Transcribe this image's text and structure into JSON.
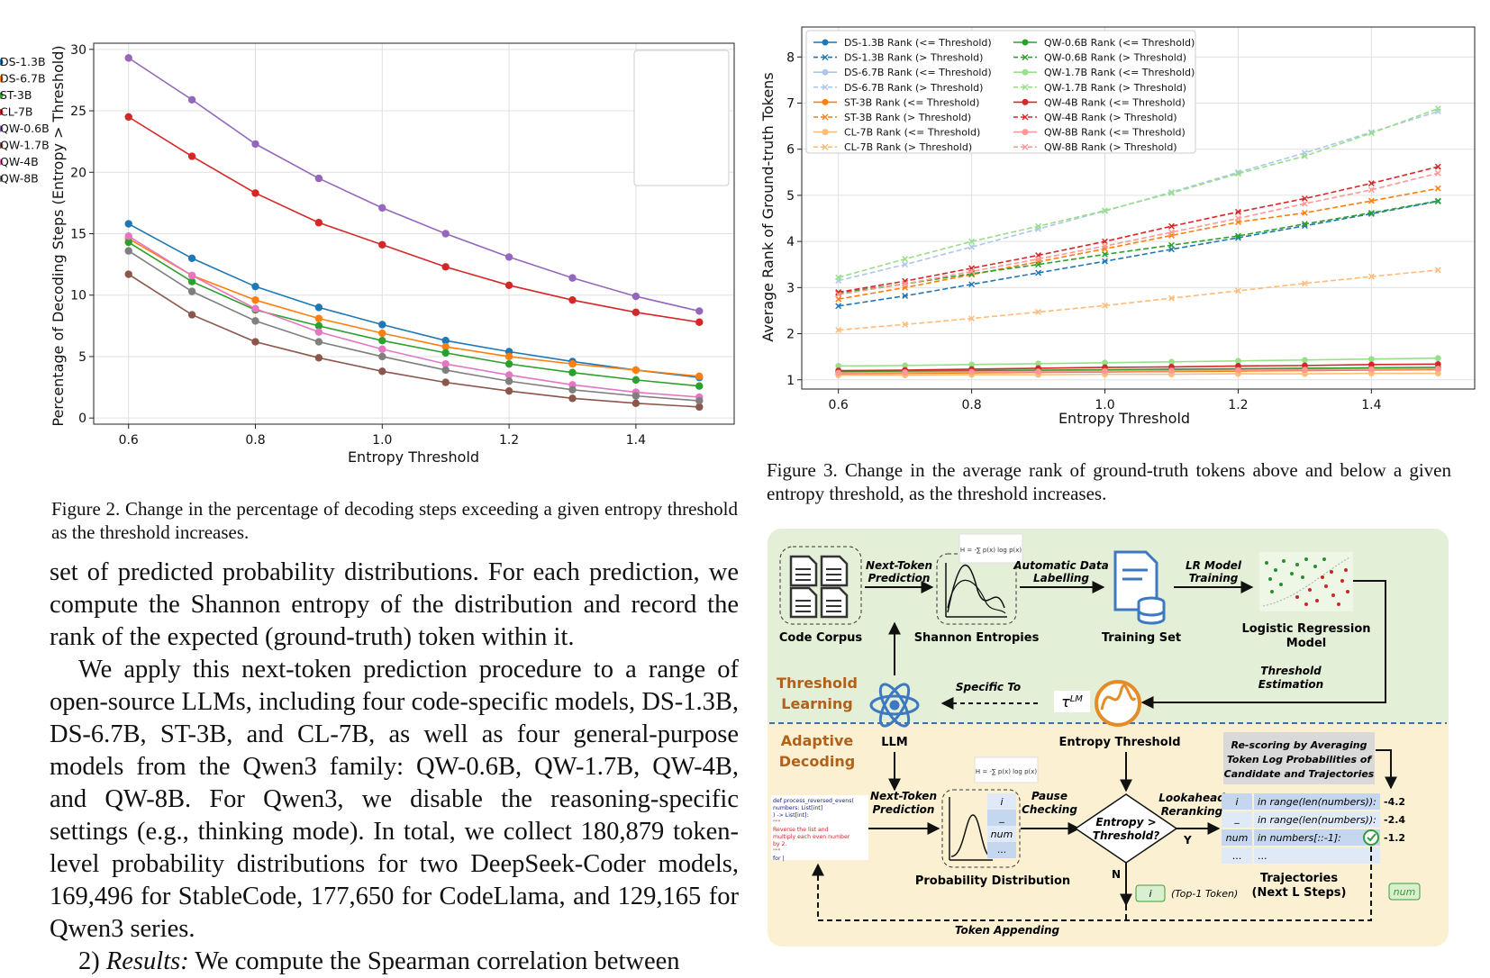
{
  "fig2": {
    "caption": "Figure 2.  Change in the percentage of decoding steps exceeding a given entropy threshold as the threshold increases.",
    "chart_data": {
      "type": "line",
      "xlabel": "Entropy Threshold",
      "ylabel": "Percentage of Decoding Steps (Entropy > Threshold)",
      "xlim": [
        0.545,
        1.555
      ],
      "ylim": [
        -0.5,
        30.5
      ],
      "xticks": [
        "0.6",
        "0.8",
        "1.0",
        "1.2",
        "1.4"
      ],
      "yticks": [
        "0",
        "5",
        "10",
        "15",
        "20",
        "25",
        "30"
      ],
      "grid": true,
      "legend": "top-right",
      "x": [
        0.6,
        0.7,
        0.8,
        0.9,
        1.0,
        1.1,
        1.2,
        1.3,
        1.4,
        1.5
      ],
      "series": [
        {
          "name": "DS-1.3B",
          "color": "#1f77b4",
          "values": [
            15.8,
            13.0,
            10.7,
            9.0,
            7.6,
            6.3,
            5.4,
            4.6,
            3.9,
            3.3
          ]
        },
        {
          "name": "DS-6.7B",
          "color": "#ff7f0e",
          "values": [
            14.6,
            11.6,
            9.6,
            8.1,
            6.9,
            5.8,
            5.0,
            4.4,
            3.9,
            3.4
          ]
        },
        {
          "name": "ST-3B",
          "color": "#2ca02c",
          "values": [
            14.3,
            11.1,
            8.8,
            7.5,
            6.3,
            5.3,
            4.4,
            3.7,
            3.1,
            2.6
          ]
        },
        {
          "name": "CL-7B",
          "color": "#d62728",
          "values": [
            24.5,
            21.3,
            18.3,
            15.9,
            14.1,
            12.3,
            10.8,
            9.6,
            8.6,
            7.8
          ]
        },
        {
          "name": "QW-0.6B",
          "color": "#9467bd",
          "values": [
            29.3,
            25.9,
            22.3,
            19.5,
            17.1,
            15.0,
            13.1,
            11.4,
            9.9,
            8.7
          ]
        },
        {
          "name": "QW-1.7B",
          "color": "#8c564b",
          "values": [
            11.7,
            8.4,
            6.2,
            4.9,
            3.8,
            2.9,
            2.2,
            1.6,
            1.2,
            0.9
          ]
        },
        {
          "name": "QW-4B",
          "color": "#e377c2",
          "values": [
            14.8,
            11.6,
            8.9,
            7.0,
            5.6,
            4.4,
            3.5,
            2.7,
            2.1,
            1.7
          ]
        },
        {
          "name": "QW-8B",
          "color": "#7f7f7f",
          "values": [
            13.6,
            10.3,
            7.9,
            6.2,
            5.0,
            3.9,
            3.0,
            2.3,
            1.8,
            1.4
          ]
        }
      ]
    }
  },
  "fig3": {
    "caption": "Figure 3.  Change in the average rank of ground-truth tokens above and below a given entropy threshold, as the threshold increases.",
    "chart_data": {
      "type": "line",
      "xlabel": "Entropy Threshold",
      "ylabel": "Average Rank of Ground-truth Tokens",
      "xlim": [
        0.545,
        1.555
      ],
      "ylim": [
        0.8,
        8.65
      ],
      "xticks": [
        "0.6",
        "0.8",
        "1.0",
        "1.2",
        "1.4"
      ],
      "yticks": [
        "1",
        "2",
        "3",
        "4",
        "5",
        "6",
        "7",
        "8"
      ],
      "grid": true,
      "legend": "top-left",
      "x": [
        0.6,
        0.7,
        0.8,
        0.9,
        1.0,
        1.1,
        1.2,
        1.3,
        1.4,
        1.5
      ],
      "series": [
        {
          "name": "DS-1.3B Rank (<= Threshold)",
          "color": "#1f77b4",
          "dash": false,
          "values": [
            1.17,
            1.18,
            1.19,
            1.2,
            1.21,
            1.22,
            1.23,
            1.24,
            1.25,
            1.26
          ]
        },
        {
          "name": "DS-1.3B Rank (> Threshold)",
          "color": "#1f77b4",
          "dash": true,
          "values": [
            2.6,
            2.82,
            3.07,
            3.32,
            3.57,
            3.83,
            4.08,
            4.34,
            4.6,
            4.87
          ]
        },
        {
          "name": "DS-6.7B Rank (<= Threshold)",
          "color": "#aec7e8",
          "dash": false,
          "values": [
            1.14,
            1.15,
            1.16,
            1.17,
            1.18,
            1.19,
            1.2,
            1.21,
            1.22,
            1.23
          ]
        },
        {
          "name": "DS-6.7B Rank (> Threshold)",
          "color": "#aec7e8",
          "dash": true,
          "values": [
            3.15,
            3.5,
            3.88,
            4.27,
            4.66,
            5.07,
            5.5,
            5.92,
            6.37,
            6.82
          ]
        },
        {
          "name": "ST-3B Rank (<= Threshold)",
          "color": "#ff7f0e",
          "dash": false,
          "values": [
            1.13,
            1.14,
            1.15,
            1.16,
            1.17,
            1.18,
            1.19,
            1.2,
            1.21,
            1.22
          ]
        },
        {
          "name": "ST-3B Rank (> Threshold)",
          "color": "#ff7f0e",
          "dash": true,
          "values": [
            2.75,
            3.0,
            3.28,
            3.56,
            3.84,
            4.13,
            4.42,
            4.62,
            4.88,
            5.15
          ]
        },
        {
          "name": "CL-7B Rank (<= Threshold)",
          "color": "#ffbb78",
          "dash": false,
          "values": [
            1.1,
            1.1,
            1.11,
            1.11,
            1.12,
            1.12,
            1.13,
            1.13,
            1.14,
            1.14
          ]
        },
        {
          "name": "CL-7B Rank (> Threshold)",
          "color": "#ffbb78",
          "dash": true,
          "values": [
            2.08,
            2.2,
            2.33,
            2.47,
            2.61,
            2.77,
            2.93,
            3.09,
            3.24,
            3.38
          ]
        },
        {
          "name": "QW-0.6B Rank (<= Threshold)",
          "color": "#2ca02c",
          "dash": false,
          "values": [
            1.18,
            1.19,
            1.2,
            1.21,
            1.22,
            1.23,
            1.24,
            1.25,
            1.26,
            1.27
          ]
        },
        {
          "name": "QW-0.6B Rank (> Threshold)",
          "color": "#2ca02c",
          "dash": true,
          "values": [
            2.88,
            3.08,
            3.3,
            3.5,
            3.72,
            3.92,
            4.12,
            4.38,
            4.62,
            4.88
          ]
        },
        {
          "name": "QW-1.7B Rank (<= Threshold)",
          "color": "#98df8a",
          "dash": false,
          "values": [
            1.3,
            1.31,
            1.33,
            1.35,
            1.37,
            1.39,
            1.41,
            1.43,
            1.45,
            1.47
          ]
        },
        {
          "name": "QW-1.7B Rank (> Threshold)",
          "color": "#98df8a",
          "dash": true,
          "values": [
            3.22,
            3.62,
            4.0,
            4.33,
            4.67,
            5.05,
            5.47,
            5.85,
            6.35,
            6.88
          ]
        },
        {
          "name": "QW-4B Rank (<= Threshold)",
          "color": "#d62728",
          "dash": false,
          "values": [
            1.2,
            1.21,
            1.23,
            1.25,
            1.27,
            1.28,
            1.3,
            1.31,
            1.33,
            1.34
          ]
        },
        {
          "name": "QW-4B Rank (> Threshold)",
          "color": "#d62728",
          "dash": true,
          "values": [
            2.9,
            3.14,
            3.42,
            3.7,
            4.0,
            4.33,
            4.64,
            4.93,
            5.26,
            5.62
          ]
        },
        {
          "name": "QW-8B Rank (<= Threshold)",
          "color": "#ff9896",
          "dash": false,
          "values": [
            1.15,
            1.16,
            1.17,
            1.18,
            1.19,
            1.2,
            1.21,
            1.22,
            1.23,
            1.24
          ]
        },
        {
          "name": "QW-8B Rank (> Threshold)",
          "color": "#ff9896",
          "dash": true,
          "values": [
            2.85,
            3.08,
            3.35,
            3.62,
            3.9,
            4.2,
            4.5,
            4.82,
            5.12,
            5.48
          ]
        }
      ]
    }
  },
  "body": {
    "p1": "set of predicted probability distributions. For each prediction, we compute the Shannon entropy of the distribution and record the rank of the expected (ground-truth) token within it.",
    "p2": "We apply this next-token prediction procedure to a range of open-source LLMs, including four code-specific models, DS-1.3B, DS-6.7B, ST-3B, and CL-7B, as well as four general-purpose models from the Qwen3 family: QW-0.6B, QW-1.7B, QW-4B, and QW-8B. For Qwen3, we disable the reasoning-specific settings (e.g., thinking mode). In total, we collect 180,879 token-level probability distributions for two DeepSeek-Coder models, 169,496 for StableCode, 177,650 for CodeLlama, and 129,165 for Qwen3 series.",
    "p3_num": "2)",
    "p3_italic": "Results:",
    "p3_rest": " We compute the Spearman correlation between"
  },
  "diagram": {
    "code_corpus": "Code Corpus",
    "next_token_prediction_1": "Next-Token",
    "next_token_prediction_2": "Prediction",
    "shannon_entropies": "Shannon Entropies",
    "auto_label_1": "Automatic Data",
    "auto_label_2": "Labelling",
    "training_set": "Training Set",
    "lr_training_1": "LR Model",
    "lr_training_2": "Training",
    "logreg_1": "Logistic Regression",
    "logreg_2": "Model",
    "threshold_learning_1": "Threshold",
    "threshold_learning_2": "Learning",
    "specific_to": "Specific To",
    "tau_lm": "τ",
    "tau_sup": "LM",
    "threshold_estimation_1": "Threshold",
    "threshold_estimation_2": "Estimation",
    "entropy_threshold": "Entropy Threshold",
    "llm": "LLM",
    "adaptive_decoding_1": "Adaptive",
    "adaptive_decoding_2": "Decoding",
    "rescoring_1": "Re-scoring by Averaging",
    "rescoring_2": "Token Log Probabilities of",
    "rescoring_3": "Candidate and Trajectories",
    "ntp2_1": "Next-Token",
    "ntp2_2": "Prediction",
    "prob_dist": "Probability Distribution",
    "pause_1": "Pause",
    "pause_2": "Checking",
    "decision_1": "Entropy >",
    "decision_2": "Threshold?",
    "yes": "Y",
    "no": "N",
    "lookahead_1": "Lookahead",
    "lookahead_2": "Reranking",
    "token_i": "i",
    "token_blank": "_",
    "token_num": "num",
    "token_more": "...",
    "traj_1": "in range(len(numbers)):",
    "traj_2": "in range(len(numbers)):",
    "traj_3": "in numbers[::-1]:",
    "traj_4": "...",
    "score_1": "-4.2",
    "score_2": "-2.4",
    "score_3": "-1.2",
    "trajectories_1": "Trajectories",
    "trajectories_2": "(Next L Steps)",
    "top1": "(Top-1 Token)",
    "top1_token": "i",
    "num_token": "num",
    "token_appending": "Token Appending",
    "code_line1": "def process_reversed_evens(",
    "code_line2": "    numbers: List[int]",
    "code_line3": ") -> List[int]:",
    "code_line4": "    \"\"\"",
    "code_line5": "    Reverse the list and",
    "code_line6": "    multiply each even number",
    "code_line7": "    by 2.",
    "code_line8": "    \"\"\"",
    "code_line9": "    for |",
    "formula": "H = -∑ p(x) log p(x)",
    "colors": {
      "top_bg": "#e3efd6",
      "bottom_bg": "#fbf1d2",
      "divider": "#3d6fb0",
      "heading": "#b0611a"
    }
  }
}
